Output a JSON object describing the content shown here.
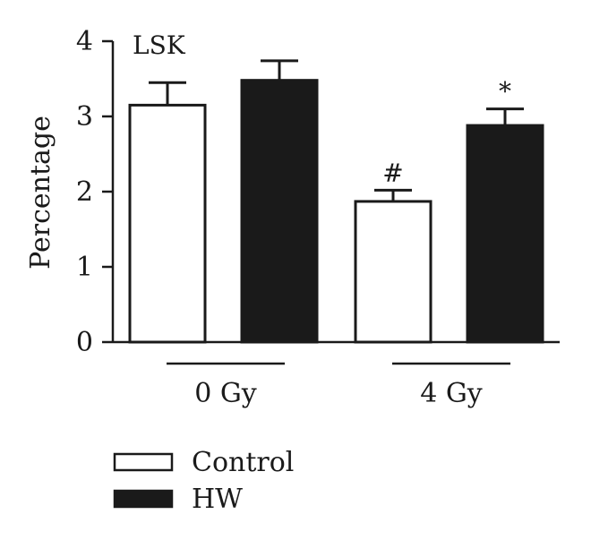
{
  "chart_data": {
    "type": "bar",
    "title": "LSK",
    "ylabel": "Percentage",
    "xlabel": "",
    "ylim": [
      0,
      4
    ],
    "yticks": [
      0,
      1,
      2,
      3,
      4
    ],
    "groups": [
      "0 Gy",
      "4 Gy"
    ],
    "series": [
      {
        "name": "Control",
        "color": "#ffffff",
        "values": [
          3.15,
          1.87
        ],
        "errors": [
          0.3,
          0.15
        ],
        "annotations": [
          "",
          "#"
        ]
      },
      {
        "name": "HW",
        "color": "#1a1a1a",
        "values": [
          3.48,
          2.88
        ],
        "errors": [
          0.26,
          0.22
        ],
        "annotations": [
          "",
          "*"
        ]
      }
    ],
    "legend_position": "bottom-left",
    "grid": false
  }
}
